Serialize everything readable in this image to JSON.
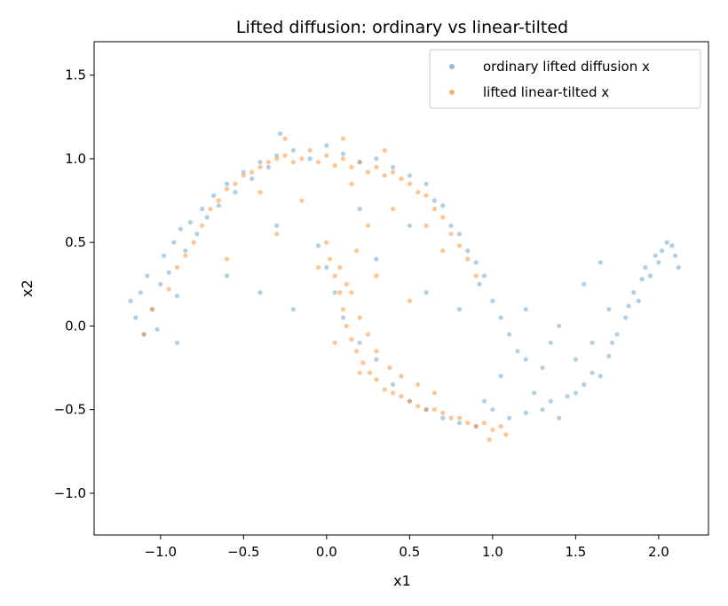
{
  "chart_data": {
    "type": "scatter",
    "title": "Lifted diffusion: ordinary vs linear-tilted",
    "xlabel": "x1",
    "ylabel": "x2",
    "xlim": [
      -1.4,
      2.3
    ],
    "ylim": [
      -1.25,
      1.7
    ],
    "xticks": [
      -1.0,
      -0.5,
      0.0,
      0.5,
      1.0,
      1.5,
      2.0
    ],
    "xtick_labels": [
      "−1.0",
      "−0.5",
      "0.0",
      "0.5",
      "1.0",
      "1.5",
      "2.0"
    ],
    "yticks": [
      -1.0,
      -0.5,
      0.0,
      0.5,
      1.0,
      1.5
    ],
    "ytick_labels": [
      "−1.0",
      "−0.5",
      "0.0",
      "0.5",
      "1.0",
      "1.5"
    ],
    "grid": false,
    "legend_position": "top-right",
    "series": [
      {
        "name": "ordinary lifted diffusion x",
        "color": "#1f77b4",
        "marker_alpha": 0.35,
        "points": [
          [
            -1.18,
            0.15
          ],
          [
            -1.15,
            0.05
          ],
          [
            -1.12,
            0.2
          ],
          [
            -1.08,
            0.3
          ],
          [
            -1.05,
            0.1
          ],
          [
            -1.02,
            -0.02
          ],
          [
            -1.0,
            0.25
          ],
          [
            -0.98,
            0.42
          ],
          [
            -0.95,
            0.32
          ],
          [
            -0.92,
            0.5
          ],
          [
            -0.9,
            0.18
          ],
          [
            -0.88,
            0.58
          ],
          [
            -0.85,
            0.45
          ],
          [
            -0.82,
            0.62
          ],
          [
            -0.78,
            0.55
          ],
          [
            -0.75,
            0.7
          ],
          [
            -0.72,
            0.65
          ],
          [
            -0.68,
            0.78
          ],
          [
            -0.65,
            0.72
          ],
          [
            -0.6,
            0.85
          ],
          [
            -0.55,
            0.8
          ],
          [
            -0.5,
            0.92
          ],
          [
            -0.45,
            0.88
          ],
          [
            -0.4,
            0.98
          ],
          [
            -0.35,
            0.95
          ],
          [
            -0.3,
            1.02
          ],
          [
            -0.28,
            1.15
          ],
          [
            -0.2,
            1.05
          ],
          [
            -0.1,
            1.0
          ],
          [
            0.0,
            1.08
          ],
          [
            0.1,
            1.03
          ],
          [
            0.2,
            0.98
          ],
          [
            0.3,
            1.0
          ],
          [
            0.4,
            0.95
          ],
          [
            0.5,
            0.9
          ],
          [
            0.6,
            0.85
          ],
          [
            0.65,
            0.75
          ],
          [
            0.7,
            0.72
          ],
          [
            0.75,
            0.6
          ],
          [
            0.8,
            0.55
          ],
          [
            0.85,
            0.45
          ],
          [
            0.9,
            0.38
          ],
          [
            0.92,
            0.25
          ],
          [
            0.95,
            0.3
          ],
          [
            1.0,
            0.15
          ],
          [
            1.05,
            0.05
          ],
          [
            1.1,
            -0.05
          ],
          [
            1.15,
            -0.15
          ],
          [
            1.0,
            -0.5
          ],
          [
            1.1,
            -0.55
          ],
          [
            1.2,
            -0.52
          ],
          [
            1.3,
            -0.5
          ],
          [
            1.35,
            -0.45
          ],
          [
            1.4,
            -0.55
          ],
          [
            1.45,
            -0.42
          ],
          [
            1.5,
            -0.4
          ],
          [
            1.55,
            -0.35
          ],
          [
            1.6,
            -0.28
          ],
          [
            1.65,
            -0.3
          ],
          [
            1.7,
            -0.18
          ],
          [
            1.72,
            -0.1
          ],
          [
            1.75,
            -0.05
          ],
          [
            1.8,
            0.05
          ],
          [
            1.82,
            0.12
          ],
          [
            1.85,
            0.2
          ],
          [
            1.88,
            0.15
          ],
          [
            1.9,
            0.28
          ],
          [
            1.92,
            0.35
          ],
          [
            1.95,
            0.3
          ],
          [
            1.98,
            0.42
          ],
          [
            2.0,
            0.38
          ],
          [
            2.02,
            0.45
          ],
          [
            2.05,
            0.5
          ],
          [
            2.08,
            0.48
          ],
          [
            2.1,
            0.42
          ],
          [
            2.12,
            0.35
          ],
          [
            1.7,
            0.1
          ],
          [
            1.6,
            -0.1
          ],
          [
            1.5,
            -0.2
          ],
          [
            1.3,
            -0.25
          ],
          [
            0.9,
            -0.6
          ],
          [
            0.8,
            -0.58
          ],
          [
            0.7,
            -0.55
          ],
          [
            0.6,
            -0.5
          ],
          [
            0.5,
            -0.45
          ],
          [
            0.4,
            -0.35
          ],
          [
            0.3,
            -0.2
          ],
          [
            0.2,
            -0.1
          ],
          [
            0.1,
            0.05
          ],
          [
            0.05,
            0.2
          ],
          [
            0.0,
            0.35
          ],
          [
            -0.05,
            0.48
          ],
          [
            -0.6,
            0.3
          ],
          [
            -0.4,
            0.2
          ],
          [
            -0.2,
            0.1
          ],
          [
            0.3,
            0.4
          ],
          [
            0.6,
            0.2
          ],
          [
            0.8,
            0.1
          ],
          [
            1.2,
            0.1
          ],
          [
            1.4,
            0.0
          ],
          [
            1.2,
            -0.2
          ],
          [
            1.35,
            -0.1
          ],
          [
            -0.9,
            -0.1
          ],
          [
            -1.1,
            -0.05
          ],
          [
            -0.3,
            0.6
          ],
          [
            0.5,
            0.6
          ],
          [
            0.2,
            0.7
          ],
          [
            1.65,
            0.38
          ],
          [
            1.55,
            0.25
          ],
          [
            1.05,
            -0.3
          ],
          [
            0.95,
            -0.45
          ],
          [
            1.25,
            -0.4
          ]
        ]
      },
      {
        "name": "lifted linear-tilted x",
        "color": "#ff7f0e",
        "marker_alpha": 0.45,
        "points": [
          [
            -1.1,
            -0.05
          ],
          [
            -1.05,
            0.1
          ],
          [
            -0.95,
            0.22
          ],
          [
            -0.9,
            0.35
          ],
          [
            -0.85,
            0.42
          ],
          [
            -0.8,
            0.5
          ],
          [
            -0.75,
            0.6
          ],
          [
            -0.7,
            0.7
          ],
          [
            -0.65,
            0.75
          ],
          [
            -0.6,
            0.82
          ],
          [
            -0.55,
            0.85
          ],
          [
            -0.5,
            0.9
          ],
          [
            -0.45,
            0.92
          ],
          [
            -0.4,
            0.95
          ],
          [
            -0.35,
            0.98
          ],
          [
            -0.3,
            1.0
          ],
          [
            -0.25,
            1.02
          ],
          [
            -0.2,
            0.98
          ],
          [
            -0.15,
            1.0
          ],
          [
            -0.1,
            1.05
          ],
          [
            -0.05,
            0.98
          ],
          [
            0.0,
            1.02
          ],
          [
            0.05,
            0.96
          ],
          [
            0.1,
            1.0
          ],
          [
            0.15,
            0.95
          ],
          [
            0.2,
            0.98
          ],
          [
            0.25,
            0.92
          ],
          [
            0.3,
            0.95
          ],
          [
            0.35,
            0.9
          ],
          [
            0.4,
            0.92
          ],
          [
            0.45,
            0.88
          ],
          [
            0.5,
            0.85
          ],
          [
            0.55,
            0.8
          ],
          [
            0.6,
            0.78
          ],
          [
            0.65,
            0.7
          ],
          [
            0.7,
            0.65
          ],
          [
            0.75,
            0.55
          ],
          [
            0.8,
            0.48
          ],
          [
            0.85,
            0.4
          ],
          [
            0.9,
            0.3
          ],
          [
            0.0,
            0.5
          ],
          [
            0.02,
            0.4
          ],
          [
            0.05,
            0.3
          ],
          [
            0.08,
            0.2
          ],
          [
            0.1,
            0.1
          ],
          [
            0.12,
            0.0
          ],
          [
            0.15,
            -0.08
          ],
          [
            0.18,
            -0.15
          ],
          [
            0.22,
            -0.22
          ],
          [
            0.26,
            -0.28
          ],
          [
            0.3,
            -0.32
          ],
          [
            0.35,
            -0.38
          ],
          [
            0.4,
            -0.4
          ],
          [
            0.45,
            -0.42
          ],
          [
            0.5,
            -0.45
          ],
          [
            0.55,
            -0.48
          ],
          [
            0.6,
            -0.5
          ],
          [
            0.65,
            -0.5
          ],
          [
            0.7,
            -0.52
          ],
          [
            0.75,
            -0.55
          ],
          [
            0.8,
            -0.55
          ],
          [
            0.85,
            -0.58
          ],
          [
            0.9,
            -0.6
          ],
          [
            0.95,
            -0.58
          ],
          [
            1.0,
            -0.62
          ],
          [
            1.05,
            -0.6
          ],
          [
            1.08,
            -0.65
          ],
          [
            0.98,
            -0.68
          ],
          [
            0.08,
            0.35
          ],
          [
            0.12,
            0.25
          ],
          [
            0.2,
            0.05
          ],
          [
            0.25,
            -0.05
          ],
          [
            0.3,
            -0.15
          ],
          [
            0.38,
            -0.25
          ],
          [
            0.45,
            -0.3
          ],
          [
            0.55,
            -0.35
          ],
          [
            0.65,
            -0.4
          ],
          [
            0.15,
            0.2
          ],
          [
            -0.05,
            0.35
          ],
          [
            0.18,
            0.45
          ],
          [
            -0.3,
            0.55
          ],
          [
            0.4,
            0.7
          ],
          [
            0.6,
            0.6
          ],
          [
            -0.6,
            0.4
          ],
          [
            0.3,
            0.3
          ],
          [
            0.5,
            0.15
          ],
          [
            0.7,
            0.45
          ],
          [
            -0.4,
            0.8
          ],
          [
            0.15,
            0.85
          ],
          [
            -0.15,
            0.75
          ],
          [
            0.25,
            0.6
          ],
          [
            0.1,
            1.12
          ],
          [
            -0.25,
            1.12
          ],
          [
            0.35,
            1.05
          ],
          [
            0.05,
            -0.1
          ],
          [
            0.2,
            -0.28
          ]
        ]
      }
    ]
  }
}
